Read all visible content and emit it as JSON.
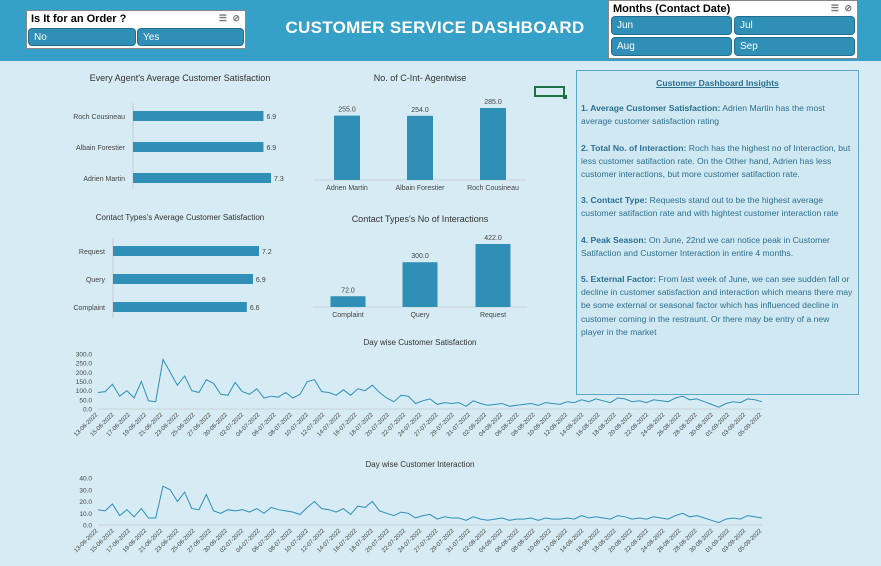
{
  "dashboard_title": "CUSTOMER SERVICE DASHBOARD",
  "order_slicer": {
    "title": "Is It for an Order ?",
    "options": [
      "No",
      "Yes"
    ]
  },
  "months_slicer": {
    "title": "Months (Contact Date)",
    "options": [
      "Jun",
      "Jul",
      "Aug",
      "Sep"
    ]
  },
  "colors": {
    "header": "#35a0c8",
    "bar": "#2f8fb7",
    "background": "#d6ebf3"
  },
  "insights": {
    "heading": "Customer Dashboard Insights",
    "items": [
      {
        "label": "1. Average Customer Satisfaction:",
        "text": " Adrien Martin has the most average customer satisfaction rating"
      },
      {
        "label": "2. Total No. of Interaction:",
        "text": " Roch has the highest no of Interaction, but less customer satifaction rate. On the Other hand, Adrien has less customer interactions, but more customer satifaction rate."
      },
      {
        "label": "3. Contact Type:",
        "text": " Requests stand out to be the highest average customer satifaction rate and with hightest customer interaction rate"
      },
      {
        "label": "4. Peak Season:",
        "text": " On June, 22nd we can notice peak in Customer Satifaction and Customer Interaction in entire 4 months."
      },
      {
        "label": "5. External Factor:",
        "text": " From last week of June, we can see sudden fall or decline in customer satisfaction and interaction which means there may be some external or seasonal factor which has influenced decline in customer coming in the restraunt. Or there may be entry of a new player in the market"
      }
    ]
  },
  "chart_data": [
    {
      "type": "bar",
      "orientation": "horizontal",
      "title": "Every Agent's Average Customer Satisfaction",
      "categories": [
        "Roch Cousineau",
        "Albain Forestier",
        "Adrien  Martin"
      ],
      "values": [
        6.9,
        6.9,
        7.3
      ],
      "labels": [
        "6.9",
        "6.9",
        "7.3"
      ]
    },
    {
      "type": "bar",
      "title": "No. of C-Int- Agentwise",
      "categories": [
        "Adrien  Martin",
        "Albain Forestier",
        "Roch Cousineau"
      ],
      "values": [
        255.0,
        254.0,
        285.0
      ],
      "labels": [
        "255.0",
        "254.0",
        "285.0"
      ]
    },
    {
      "type": "bar",
      "orientation": "horizontal",
      "title": "Contact Types's Average Customer Satisfaction",
      "categories": [
        "Request",
        "Query",
        "Complaint"
      ],
      "values": [
        7.2,
        6.9,
        6.6
      ],
      "labels": [
        "7.2",
        "6.9",
        "6.6"
      ]
    },
    {
      "type": "bar",
      "title": "Contact Types's No of Interactions",
      "categories": [
        "Complaint",
        "Query",
        "Request"
      ],
      "values": [
        72.0,
        300.0,
        422.0
      ],
      "labels": [
        "72.0",
        "300.0",
        "422.0"
      ]
    },
    {
      "type": "line",
      "title": "Day wise Customer Satisfaction",
      "ylim": [
        0,
        300
      ],
      "yticks": [
        "0.0",
        "50.0",
        "100.0",
        "150.0",
        "200.0",
        "250.0",
        "300.0"
      ],
      "xticks": [
        "13-06-2022",
        "15-06-2022",
        "17-06-2022",
        "19-06-2022",
        "21-06-2022",
        "23-06-2022",
        "25-06-2022",
        "27-06-2022",
        "30-06-2022",
        "02-07-2022",
        "04-07-2022",
        "06-07-2022",
        "08-07-2022",
        "10-07-2022",
        "12-07-2022",
        "14-07-2022",
        "16-07-2022",
        "18-07-2022",
        "20-07-2022",
        "22-07-2022",
        "24-07-2022",
        "27-07-2022",
        "29-07-2022",
        "31-07-2022",
        "02-08-2022",
        "04-08-2022",
        "06-08-2022",
        "08-08-2022",
        "10-08-2022",
        "12-08-2022",
        "14-08-2022",
        "16-08-2022",
        "18-08-2022",
        "20-08-2022",
        "22-08-2022",
        "24-08-2022",
        "26-08-2022",
        "28-08-2022",
        "30-08-2022",
        "01-09-2022",
        "03-09-2022",
        "05-09-2022"
      ],
      "values": [
        90,
        95,
        135,
        70,
        100,
        60,
        150,
        45,
        40,
        270,
        200,
        130,
        180,
        100,
        90,
        160,
        140,
        80,
        75,
        145,
        95,
        80,
        110,
        60,
        70,
        65,
        90,
        60,
        80,
        150,
        160,
        95,
        90,
        75,
        105,
        75,
        110,
        100,
        130,
        90,
        60,
        40,
        75,
        70,
        30,
        45,
        55,
        25,
        35,
        30,
        35,
        15,
        45,
        30,
        20,
        25,
        30,
        15,
        20,
        25,
        30,
        20,
        35,
        30,
        25,
        40,
        35,
        50,
        40,
        55,
        45,
        35,
        60,
        55,
        40,
        45,
        35,
        50,
        45,
        40,
        60,
        70,
        50,
        55,
        40,
        25,
        10,
        30,
        40,
        35,
        55,
        50,
        40
      ]
    },
    {
      "type": "line",
      "title": "Day wise Customer Interaction",
      "ylim": [
        0,
        40
      ],
      "yticks": [
        "0.0",
        "10.0",
        "20.0",
        "30.0",
        "40.0"
      ],
      "xticks": [
        "13-06-2022",
        "15-06-2022",
        "17-06-2022",
        "19-06-2022",
        "21-06-2022",
        "23-06-2022",
        "25-06-2022",
        "27-06-2022",
        "30-06-2022",
        "02-07-2022",
        "04-07-2022",
        "06-07-2022",
        "08-07-2022",
        "10-07-2022",
        "12-07-2022",
        "14-07-2022",
        "16-07-2022",
        "18-07-2022",
        "20-07-2022",
        "22-07-2022",
        "24-07-2022",
        "27-07-2022",
        "29-07-2022",
        "31-07-2022",
        "02-08-2022",
        "04-08-2022",
        "06-08-2022",
        "08-08-2022",
        "10-08-2022",
        "12-08-2022",
        "14-08-2022",
        "16-08-2022",
        "18-08-2022",
        "20-08-2022",
        "22-08-2022",
        "24-08-2022",
        "26-08-2022",
        "28-08-2022",
        "30-08-2022",
        "01-09-2022",
        "03-09-2022",
        "05-09-2022"
      ],
      "values": [
        13,
        12,
        18,
        8,
        13,
        7,
        14,
        6,
        6,
        33,
        30,
        20,
        28,
        14,
        13,
        26,
        12,
        10,
        13,
        12,
        13,
        11,
        14,
        10,
        15,
        13,
        12,
        11,
        9,
        15,
        20,
        14,
        13,
        11,
        14,
        9,
        16,
        15,
        20,
        12,
        10,
        8,
        11,
        10,
        6,
        8,
        9,
        5,
        7,
        6,
        6,
        4,
        7,
        5,
        4,
        5,
        6,
        4,
        5,
        5,
        6,
        4,
        6,
        5,
        5,
        6,
        5,
        8,
        6,
        7,
        6,
        5,
        8,
        7,
        5,
        6,
        5,
        7,
        6,
        5,
        8,
        10,
        7,
        8,
        6,
        4,
        2,
        5,
        6,
        5,
        8,
        7,
        6
      ]
    }
  ]
}
